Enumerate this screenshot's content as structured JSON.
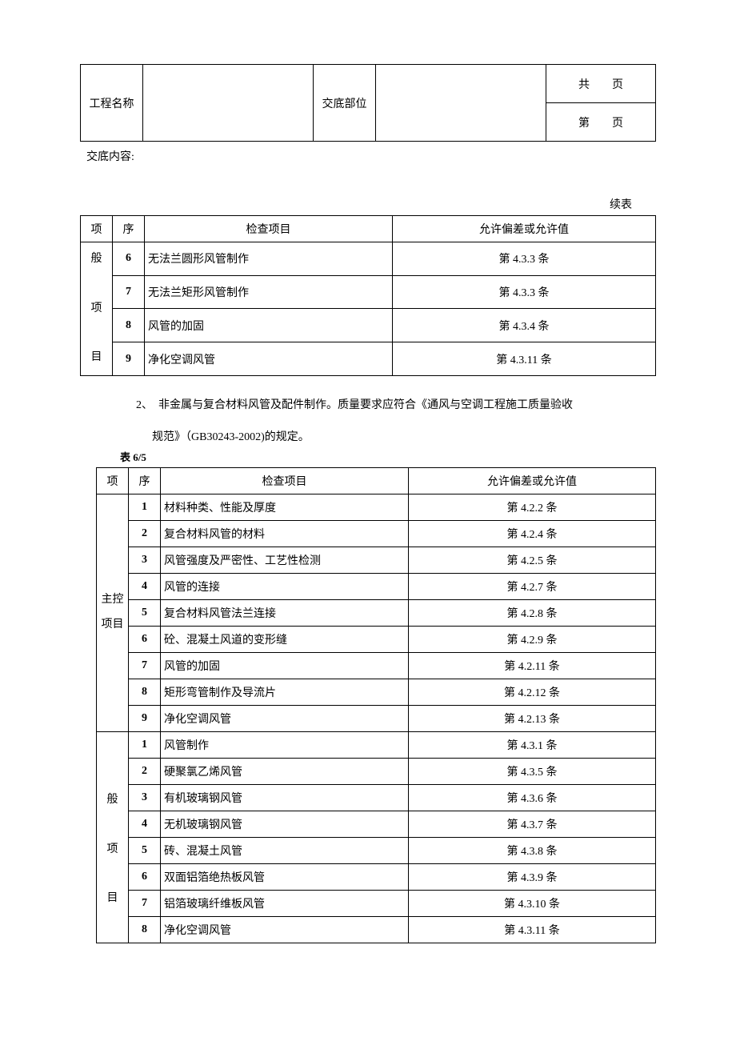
{
  "header": {
    "project_label": "工程名称",
    "part_label": "交底部位",
    "page_total_prefix": "共",
    "page_total_suffix": "页",
    "page_num_prefix": "第",
    "page_num_suffix": "页"
  },
  "content_label": "交底内容:",
  "continue_label": "续表",
  "table1": {
    "header": {
      "cat": "项",
      "seq": "序",
      "item": "检查项目",
      "allow": "允许偏差或允许值"
    },
    "cat_label": "般\n项\n目",
    "rows": [
      {
        "seq": "6",
        "item": "无法兰圆形风管制作",
        "allow": "第 4.3.3 条"
      },
      {
        "seq": "7",
        "item": "无法兰矩形风管制作",
        "allow": "第 4.3.3 条"
      },
      {
        "seq": "8",
        "item": "风管的加固",
        "allow": "第 4.3.4 条"
      },
      {
        "seq": "9",
        "item": "净化空调风管",
        "allow": "第 4.3.11 条"
      }
    ]
  },
  "note_line1": "2、　非金属与复合材料风管及配件制作。质量要求应符合《通风与空调工程施工质量验收",
  "note_line2": "规范》（GB30243-2002)的规定。",
  "table2_label": "表 6/5",
  "table2": {
    "header": {
      "cat": "项",
      "seq": "序",
      "item": "检查项目",
      "allow": "允许偏差或允许值"
    },
    "cat1_label": "主控\n项目",
    "cat2_label": "般\n项\n目",
    "section1": [
      {
        "seq": "1",
        "item": "材料种类、性能及厚度",
        "allow": "第 4.2.2 条"
      },
      {
        "seq": "2",
        "item": "复合材料风管的材料",
        "allow": "第 4.2.4 条"
      },
      {
        "seq": "3",
        "item": "风管强度及严密性、工艺性检测",
        "allow": "第 4.2.5 条"
      },
      {
        "seq": "4",
        "item": "风管的连接",
        "allow": "第 4.2.7 条"
      },
      {
        "seq": "5",
        "item": "复合材料风管法兰连接",
        "allow": "第 4.2.8 条"
      },
      {
        "seq": "6",
        "item": "砼、混凝土风道的变形缝",
        "allow": "第 4.2.9 条"
      },
      {
        "seq": "7",
        "item": "风管的加固",
        "allow": "第 4.2.11 条"
      },
      {
        "seq": "8",
        "item": "矩形弯管制作及导流片",
        "allow": "第 4.2.12 条"
      },
      {
        "seq": "9",
        "item": "净化空调风管",
        "allow": "第 4.2.13 条"
      }
    ],
    "section2": [
      {
        "seq": "1",
        "item": "风管制作",
        "allow": "第 4.3.1 条"
      },
      {
        "seq": "2",
        "item": "硬聚氯乙烯风管",
        "allow": "第 4.3.5 条"
      },
      {
        "seq": "3",
        "item": "有机玻璃钢风管",
        "allow": "第 4.3.6 条"
      },
      {
        "seq": "4",
        "item": "无机玻璃钢风管",
        "allow": "第 4.3.7 条"
      },
      {
        "seq": "5",
        "item": "砖、混凝土风管",
        "allow": "第 4.3.8 条"
      },
      {
        "seq": "6",
        "item": "双面铝箔绝热板风管",
        "allow": "第 4.3.9 条"
      },
      {
        "seq": "7",
        "item": "铝箔玻璃纤维板风管",
        "allow": "第 4.3.10 条"
      },
      {
        "seq": "8",
        "item": "净化空调风管",
        "allow": "第 4.3.11 条"
      }
    ]
  }
}
